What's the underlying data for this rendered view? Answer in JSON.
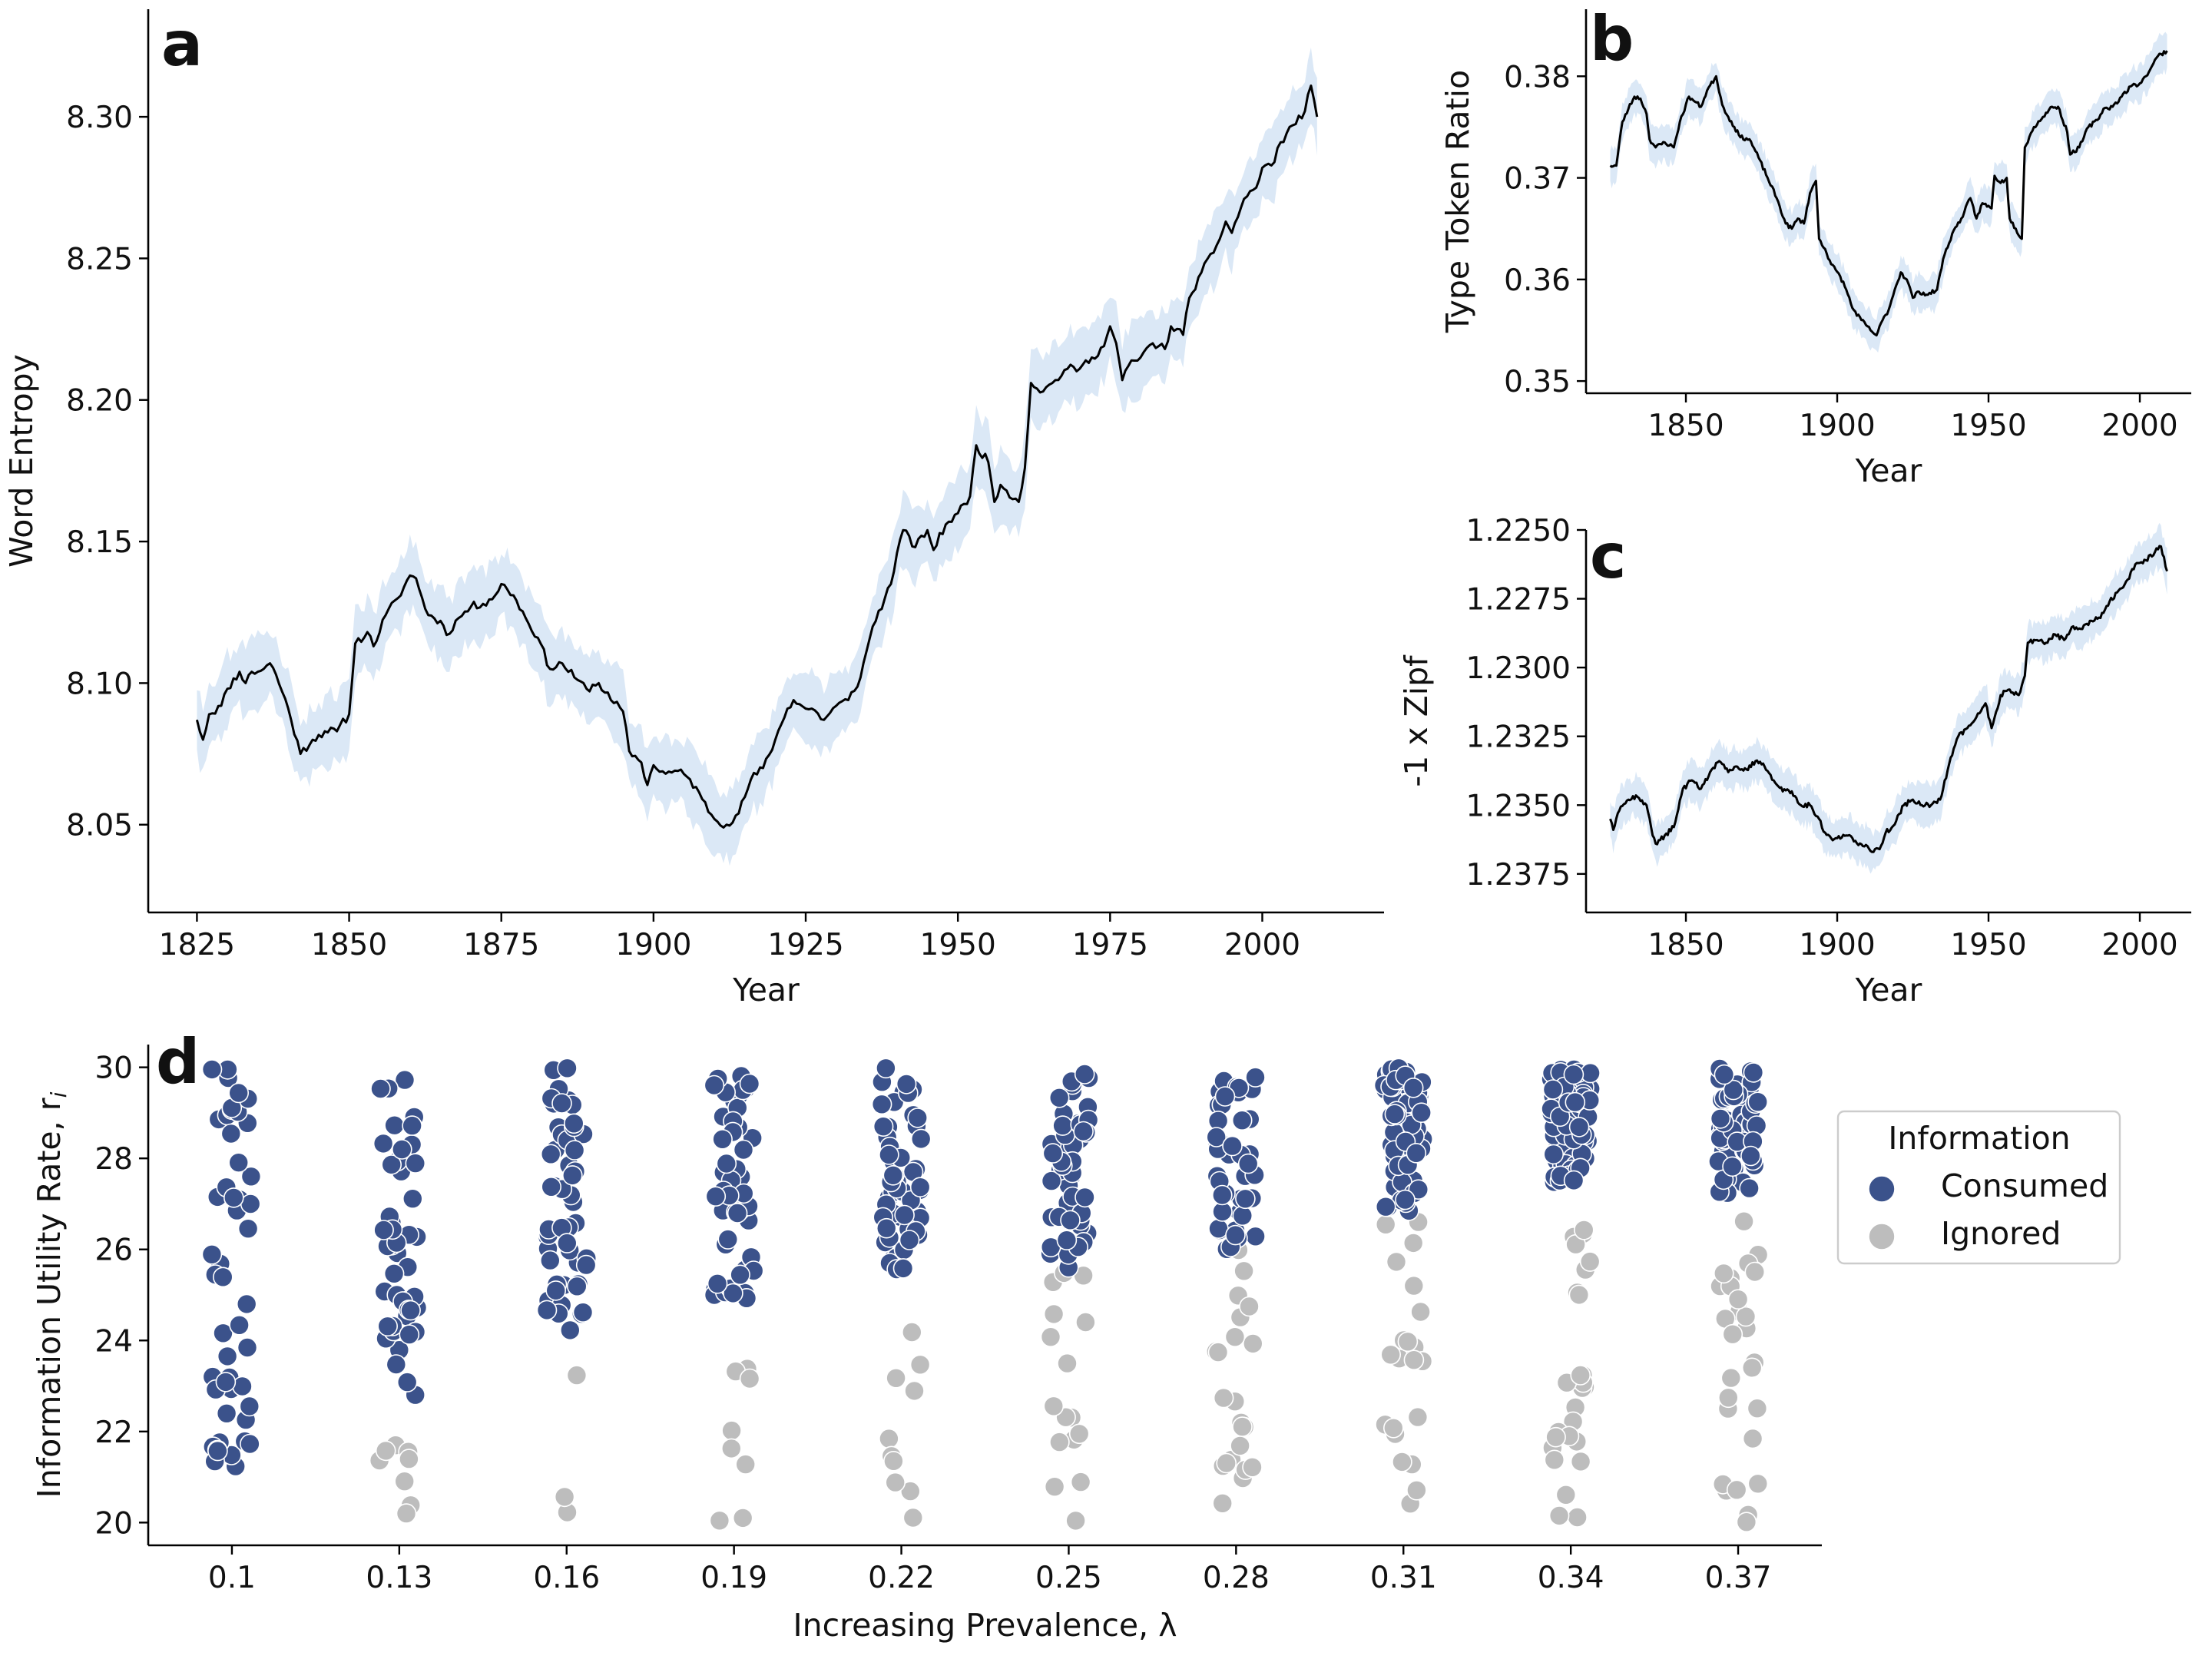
{
  "colors": {
    "band": "#dbe8f6",
    "line": "#000000",
    "consumed": "#3b528b",
    "ignored": "#bdbdbd",
    "axis": "#000000"
  },
  "chart_data": [
    {
      "panel": "a",
      "type": "line",
      "xlabel": "Year",
      "ylabel": "Word Entropy",
      "xlim": [
        1817,
        2020
      ],
      "ylim": [
        8.019,
        8.338
      ],
      "xticks": [
        1825,
        1850,
        1875,
        1900,
        1925,
        1950,
        1975,
        2000
      ],
      "yticks": [
        8.05,
        8.1,
        8.15,
        8.2,
        8.25,
        8.3
      ],
      "ytick_labels": [
        "8.05",
        "8.10",
        "8.15",
        "8.20",
        "8.25",
        "8.30"
      ],
      "band_halfwidth": 0.012,
      "keypoints": [
        [
          1825,
          8.087
        ],
        [
          1826,
          8.08
        ],
        [
          1827,
          8.089
        ],
        [
          1829,
          8.092
        ],
        [
          1830,
          8.098
        ],
        [
          1832,
          8.104
        ],
        [
          1833,
          8.1
        ],
        [
          1834,
          8.104
        ],
        [
          1835,
          8.104
        ],
        [
          1837,
          8.107
        ],
        [
          1838,
          8.103
        ],
        [
          1840,
          8.091
        ],
        [
          1842,
          8.075
        ],
        [
          1844,
          8.08
        ],
        [
          1846,
          8.083
        ],
        [
          1848,
          8.083
        ],
        [
          1850,
          8.089
        ],
        [
          1851,
          8.114
        ],
        [
          1853,
          8.118
        ],
        [
          1854,
          8.113
        ],
        [
          1856,
          8.124
        ],
        [
          1858,
          8.13
        ],
        [
          1860,
          8.138
        ],
        [
          1861,
          8.137
        ],
        [
          1862,
          8.13
        ],
        [
          1863,
          8.124
        ],
        [
          1865,
          8.122
        ],
        [
          1866,
          8.117
        ],
        [
          1868,
          8.123
        ],
        [
          1870,
          8.127
        ],
        [
          1872,
          8.128
        ],
        [
          1874,
          8.131
        ],
        [
          1875,
          8.135
        ],
        [
          1877,
          8.131
        ],
        [
          1879,
          8.123
        ],
        [
          1881,
          8.116
        ],
        [
          1883,
          8.105
        ],
        [
          1885,
          8.107
        ],
        [
          1887,
          8.102
        ],
        [
          1889,
          8.098
        ],
        [
          1891,
          8.1
        ],
        [
          1893,
          8.094
        ],
        [
          1895,
          8.09
        ],
        [
          1896,
          8.076
        ],
        [
          1898,
          8.072
        ],
        [
          1899,
          8.064
        ],
        [
          1900,
          8.071
        ],
        [
          1902,
          8.068
        ],
        [
          1904,
          8.069
        ],
        [
          1906,
          8.066
        ],
        [
          1908,
          8.059
        ],
        [
          1910,
          8.052
        ],
        [
          1912,
          8.05
        ],
        [
          1914,
          8.054
        ],
        [
          1916,
          8.066
        ],
        [
          1918,
          8.07
        ],
        [
          1920,
          8.08
        ],
        [
          1922,
          8.091
        ],
        [
          1923,
          8.094
        ],
        [
          1925,
          8.091
        ],
        [
          1926,
          8.091
        ],
        [
          1928,
          8.087
        ],
        [
          1930,
          8.092
        ],
        [
          1932,
          8.094
        ],
        [
          1934,
          8.102
        ],
        [
          1936,
          8.12
        ],
        [
          1938,
          8.13
        ],
        [
          1939,
          8.135
        ],
        [
          1940,
          8.146
        ],
        [
          1941,
          8.154
        ],
        [
          1943,
          8.148
        ],
        [
          1945,
          8.154
        ],
        [
          1946,
          8.147
        ],
        [
          1948,
          8.156
        ],
        [
          1950,
          8.16
        ],
        [
          1952,
          8.166
        ],
        [
          1953,
          8.184
        ],
        [
          1955,
          8.178
        ],
        [
          1956,
          8.164
        ],
        [
          1957,
          8.17
        ],
        [
          1958,
          8.168
        ],
        [
          1960,
          8.164
        ],
        [
          1961,
          8.176
        ],
        [
          1962,
          8.206
        ],
        [
          1964,
          8.203
        ],
        [
          1966,
          8.207
        ],
        [
          1968,
          8.211
        ],
        [
          1970,
          8.211
        ],
        [
          1972,
          8.215
        ],
        [
          1974,
          8.219
        ],
        [
          1975,
          8.226
        ],
        [
          1976,
          8.22
        ],
        [
          1977,
          8.207
        ],
        [
          1978,
          8.212
        ],
        [
          1980,
          8.215
        ],
        [
          1982,
          8.22
        ],
        [
          1984,
          8.218
        ],
        [
          1985,
          8.226
        ],
        [
          1987,
          8.223
        ],
        [
          1988,
          8.236
        ],
        [
          1990,
          8.245
        ],
        [
          1992,
          8.252
        ],
        [
          1994,
          8.263
        ],
        [
          1995,
          8.259
        ],
        [
          1997,
          8.271
        ],
        [
          1999,
          8.275
        ],
        [
          2000,
          8.282
        ],
        [
          2002,
          8.284
        ],
        [
          2003,
          8.291
        ],
        [
          2005,
          8.297
        ],
        [
          2007,
          8.302
        ],
        [
          2008,
          8.311
        ],
        [
          2009,
          8.3
        ]
      ]
    },
    {
      "panel": "b",
      "type": "line",
      "xlabel": "Year",
      "ylabel": "Type Token Ratio",
      "xlim": [
        1817,
        2017
      ],
      "ylim": [
        0.3488,
        0.3866
      ],
      "xticks": [
        1850,
        1900,
        1950,
        2000
      ],
      "yticks": [
        0.35,
        0.36,
        0.37,
        0.38
      ],
      "ytick_labels": [
        "0.35",
        "0.36",
        "0.37",
        "0.38"
      ],
      "band_halfwidth": 0.0017,
      "keypoints": [
        [
          1825,
          0.3712
        ],
        [
          1827,
          0.3712
        ],
        [
          1829,
          0.3755
        ],
        [
          1831,
          0.3768
        ],
        [
          1833,
          0.378
        ],
        [
          1835,
          0.3778
        ],
        [
          1837,
          0.3763
        ],
        [
          1838,
          0.3738
        ],
        [
          1840,
          0.373
        ],
        [
          1843,
          0.3735
        ],
        [
          1846,
          0.373
        ],
        [
          1848,
          0.3755
        ],
        [
          1851,
          0.378
        ],
        [
          1853,
          0.3775
        ],
        [
          1855,
          0.377
        ],
        [
          1857,
          0.3786
        ],
        [
          1860,
          0.38
        ],
        [
          1862,
          0.3772
        ],
        [
          1864,
          0.376
        ],
        [
          1866,
          0.375
        ],
        [
          1868,
          0.374
        ],
        [
          1871,
          0.3738
        ],
        [
          1874,
          0.372
        ],
        [
          1877,
          0.37
        ],
        [
          1880,
          0.368
        ],
        [
          1883,
          0.3655
        ],
        [
          1885,
          0.365
        ],
        [
          1887,
          0.366
        ],
        [
          1889,
          0.3655
        ],
        [
          1891,
          0.3685
        ],
        [
          1893,
          0.3697
        ],
        [
          1894,
          0.364
        ],
        [
          1896,
          0.363
        ],
        [
          1898,
          0.3615
        ],
        [
          1901,
          0.3603
        ],
        [
          1903,
          0.359
        ],
        [
          1905,
          0.3572
        ],
        [
          1908,
          0.356
        ],
        [
          1911,
          0.355
        ],
        [
          1913,
          0.3545
        ],
        [
          1915,
          0.356
        ],
        [
          1917,
          0.357
        ],
        [
          1919,
          0.359
        ],
        [
          1921,
          0.3607
        ],
        [
          1923,
          0.36
        ],
        [
          1925,
          0.3582
        ],
        [
          1927,
          0.3588
        ],
        [
          1930,
          0.3585
        ],
        [
          1933,
          0.359
        ],
        [
          1935,
          0.362
        ],
        [
          1938,
          0.3645
        ],
        [
          1941,
          0.366
        ],
        [
          1944,
          0.368
        ],
        [
          1946,
          0.366
        ],
        [
          1948,
          0.3675
        ],
        [
          1951,
          0.367
        ],
        [
          1952,
          0.3702
        ],
        [
          1954,
          0.3695
        ],
        [
          1956,
          0.37
        ],
        [
          1957,
          0.366
        ],
        [
          1959,
          0.365
        ],
        [
          1961,
          0.364
        ],
        [
          1962,
          0.373
        ],
        [
          1965,
          0.375
        ],
        [
          1968,
          0.376
        ],
        [
          1971,
          0.377
        ],
        [
          1973,
          0.377
        ],
        [
          1976,
          0.3745
        ],
        [
          1977,
          0.3723
        ],
        [
          1980,
          0.373
        ],
        [
          1983,
          0.375
        ],
        [
          1986,
          0.3757
        ],
        [
          1988,
          0.3768
        ],
        [
          1991,
          0.377
        ],
        [
          1994,
          0.378
        ],
        [
          1997,
          0.379
        ],
        [
          2000,
          0.3793
        ],
        [
          2002,
          0.38
        ],
        [
          2004,
          0.381
        ],
        [
          2006,
          0.382
        ],
        [
          2007,
          0.3822
        ],
        [
          2009,
          0.3825
        ]
      ]
    },
    {
      "panel": "c",
      "type": "line",
      "xlabel": "Year",
      "ylabel": "-1 x Zipf",
      "xlim": [
        1817,
        2017
      ],
      "ylim": [
        1.2389,
        1.225
      ],
      "xticks": [
        1850,
        1900,
        1950,
        2000
      ],
      "yticks": [
        1.225,
        1.2275,
        1.23,
        1.2325,
        1.235,
        1.2375
      ],
      "ytick_labels": [
        "1.2250",
        "1.2275",
        "1.2300",
        "1.2325",
        "1.2350",
        "1.2375"
      ],
      "band_halfwidth": 0.0007,
      "keypoints": [
        [
          1825,
          1.2355
        ],
        [
          1826,
          1.2359
        ],
        [
          1828,
          1.2352
        ],
        [
          1831,
          1.2348
        ],
        [
          1834,
          1.2347
        ],
        [
          1837,
          1.235
        ],
        [
          1839,
          1.2361
        ],
        [
          1840,
          1.2364
        ],
        [
          1843,
          1.2361
        ],
        [
          1846,
          1.2358
        ],
        [
          1849,
          1.2344
        ],
        [
          1852,
          1.2341
        ],
        [
          1855,
          1.2344
        ],
        [
          1858,
          1.2338
        ],
        [
          1861,
          1.2334
        ],
        [
          1864,
          1.2338
        ],
        [
          1867,
          1.2336
        ],
        [
          1870,
          1.2337
        ],
        [
          1873,
          1.2334
        ],
        [
          1876,
          1.2336
        ],
        [
          1879,
          1.2341
        ],
        [
          1882,
          1.2345
        ],
        [
          1885,
          1.2345
        ],
        [
          1888,
          1.235
        ],
        [
          1891,
          1.235
        ],
        [
          1894,
          1.2355
        ],
        [
          1896,
          1.236
        ],
        [
          1898,
          1.2362
        ],
        [
          1900,
          1.2362
        ],
        [
          1903,
          1.2361
        ],
        [
          1906,
          1.2363
        ],
        [
          1909,
          1.2365
        ],
        [
          1912,
          1.2367
        ],
        [
          1914,
          1.2366
        ],
        [
          1916,
          1.236
        ],
        [
          1919,
          1.2357
        ],
        [
          1922,
          1.235
        ],
        [
          1925,
          1.2348
        ],
        [
          1928,
          1.235
        ],
        [
          1931,
          1.235
        ],
        [
          1934,
          1.2348
        ],
        [
          1937,
          1.2335
        ],
        [
          1940,
          1.2325
        ],
        [
          1943,
          1.2322
        ],
        [
          1946,
          1.2318
        ],
        [
          1949,
          1.2313
        ],
        [
          1951,
          1.2322
        ],
        [
          1954,
          1.231
        ],
        [
          1957,
          1.2308
        ],
        [
          1960,
          1.231
        ],
        [
          1962,
          1.2303
        ],
        [
          1963,
          1.2291
        ],
        [
          1966,
          1.229
        ],
        [
          1969,
          1.2291
        ],
        [
          1972,
          1.2288
        ],
        [
          1975,
          1.229
        ],
        [
          1978,
          1.2285
        ],
        [
          1981,
          1.2286
        ],
        [
          1984,
          1.2283
        ],
        [
          1987,
          1.2282
        ],
        [
          1990,
          1.2276
        ],
        [
          1993,
          1.2272
        ],
        [
          1996,
          1.2268
        ],
        [
          1999,
          1.2262
        ],
        [
          2002,
          1.2261
        ],
        [
          2005,
          1.2258
        ],
        [
          2007,
          1.2256
        ],
        [
          2009,
          1.2265
        ]
      ]
    },
    {
      "panel": "d",
      "type": "scatter",
      "xlabel": "Increasing Prevalence, λ",
      "ylabel": "Information Utility Rate, r",
      "ylabel_sub": "i",
      "categories": [
        "0.1",
        "0.13",
        "0.16",
        "0.19",
        "0.22",
        "0.25",
        "0.28",
        "0.31",
        "0.34",
        "0.37"
      ],
      "ylim": [
        19.5,
        30.5
      ],
      "yticks": [
        20,
        22,
        24,
        26,
        28,
        30
      ],
      "ytick_labels": [
        "20",
        "22",
        "24",
        "26",
        "28",
        "30"
      ],
      "jitter": 0.12,
      "legend": {
        "title": "Information",
        "entries": [
          "Consumed",
          "Ignored"
        ],
        "placement": "right"
      },
      "series": [
        {
          "name": "Consumed",
          "threshold": [
            20.6,
            22.7,
            24.0,
            24.8,
            25.5,
            25.5,
            26.0,
            26.8,
            27.2,
            27.2
          ],
          "count": [
            48,
            45,
            52,
            50,
            55,
            48,
            42,
            70,
            75,
            60
          ]
        },
        {
          "name": "Ignored",
          "min": [
            20.0,
            20.0,
            20.0,
            20.0,
            20.0,
            20.0,
            20.0,
            20.0,
            20.0,
            20.0
          ],
          "count": [
            0,
            8,
            3,
            8,
            10,
            16,
            22,
            24,
            26,
            28
          ]
        }
      ]
    }
  ]
}
